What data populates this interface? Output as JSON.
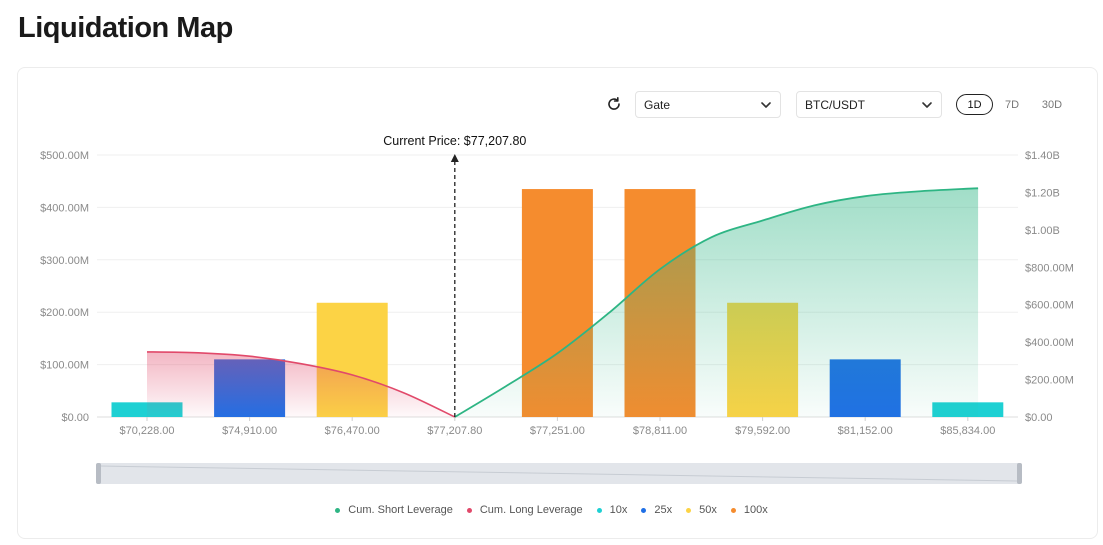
{
  "page": {
    "title": "Liquidation Map"
  },
  "controls": {
    "exchange": "Gate",
    "pair": "BTC/USDT",
    "ranges": [
      "1D",
      "7D",
      "30D"
    ],
    "active_range": "1D"
  },
  "colors": {
    "short": "#2eb584",
    "long": "#e1496a",
    "10x": "#1ed0d3",
    "25x": "#1f6fe6",
    "50x": "#fcd345",
    "100x": "#f58c2e",
    "marker": "#222222",
    "axis_text": "#8a8a8a",
    "grid": "#efefef"
  },
  "chart_data": {
    "type": "bar",
    "categories": [
      "$70,228.00",
      "$74,910.00",
      "$76,470.00",
      "$77,207.80",
      "$77,251.00",
      "$78,811.00",
      "$79,592.00",
      "$81,152.00",
      "$85,834.00"
    ],
    "bars": [
      {
        "category": "$70,228.00",
        "leverage": "10x",
        "value": 28
      },
      {
        "category": "$74,910.00",
        "leverage": "25x",
        "value": 110
      },
      {
        "category": "$76,470.00",
        "leverage": "50x",
        "value": 218
      },
      {
        "category": "$77,251.00",
        "leverage": "100x",
        "value": 435
      },
      {
        "category": "$78,811.00",
        "leverage": "100x",
        "value": 435
      },
      {
        "category": "$79,592.00",
        "leverage": "50x",
        "value": 218
      },
      {
        "category": "$81,152.00",
        "leverage": "25x",
        "value": 110
      },
      {
        "category": "$85,834.00",
        "leverage": "10x",
        "value": 28
      }
    ],
    "left_axis": {
      "ticks": [
        "$0.00",
        "$100.00M",
        "$200.00M",
        "$300.00M",
        "$400.00M",
        "$500.00M"
      ],
      "ylim": [
        0,
        500
      ]
    },
    "right_axis": {
      "ticks": [
        "$0.00",
        "$200.00M",
        "$400.00M",
        "$600.00M",
        "$800.00M",
        "$1.00B",
        "$1.20B",
        "$1.40B"
      ],
      "ylim": [
        0,
        1400
      ]
    },
    "cum_long": {
      "name": "Cum. Long Leverage",
      "points": [
        {
          "x": 0.0,
          "y": 348
        },
        {
          "x": 0.5,
          "y": 343
        },
        {
          "x": 1.0,
          "y": 325
        },
        {
          "x": 1.5,
          "y": 285
        },
        {
          "x": 2.0,
          "y": 225
        },
        {
          "x": 2.5,
          "y": 130
        },
        {
          "x": 3.0,
          "y": 0
        }
      ]
    },
    "cum_short": {
      "name": "Cum. Short Leverage",
      "points": [
        {
          "x": 3.0,
          "y": 0
        },
        {
          "x": 3.5,
          "y": 165
        },
        {
          "x": 4.0,
          "y": 340
        },
        {
          "x": 4.5,
          "y": 555
        },
        {
          "x": 5.0,
          "y": 790
        },
        {
          "x": 5.5,
          "y": 960
        },
        {
          "x": 6.0,
          "y": 1050
        },
        {
          "x": 6.5,
          "y": 1130
        },
        {
          "x": 7.0,
          "y": 1180
        },
        {
          "x": 7.5,
          "y": 1205
        },
        {
          "x": 8.0,
          "y": 1220
        },
        {
          "x": 8.1,
          "y": 1222
        }
      ]
    },
    "current_price": {
      "label": "Current Price: $77,207.80",
      "x": 3.0
    },
    "legend": [
      {
        "name": "Cum. Short Leverage",
        "color_key": "short"
      },
      {
        "name": "Cum. Long Leverage",
        "color_key": "long"
      },
      {
        "name": "10x",
        "color_key": "10x"
      },
      {
        "name": "25x",
        "color_key": "25x"
      },
      {
        "name": "50x",
        "color_key": "50x"
      },
      {
        "name": "100x",
        "color_key": "100x"
      }
    ],
    "legend_position": "bottom",
    "grid": true
  }
}
